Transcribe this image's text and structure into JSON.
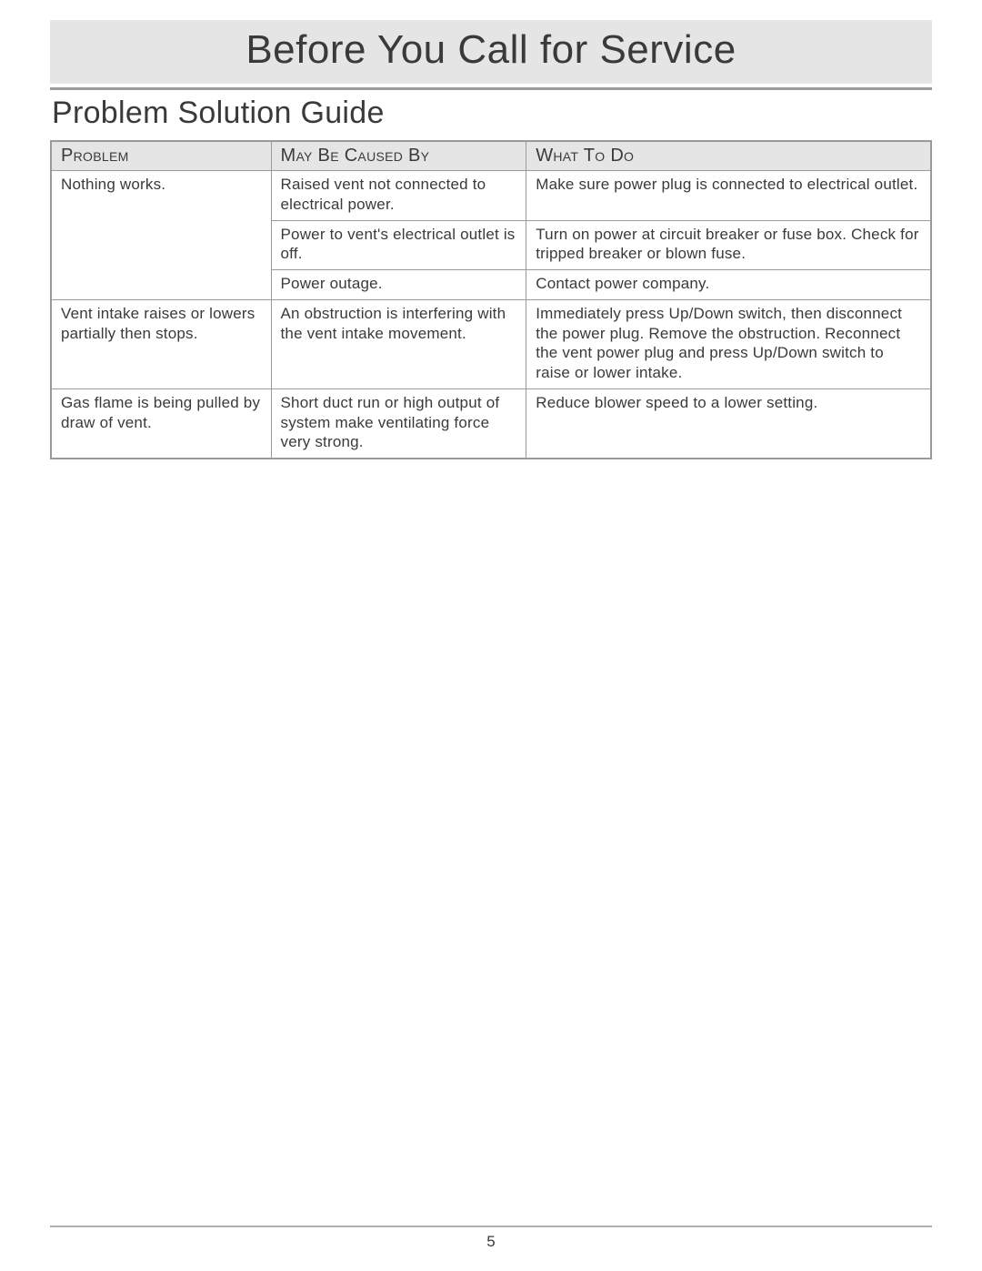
{
  "page": {
    "title": "Before You Call for Service",
    "subtitle": "Problem Solution Guide",
    "page_number": "5"
  },
  "table": {
    "headers": {
      "problem": "Problem",
      "cause": "May Be Caused By",
      "action": "What To Do"
    },
    "rows": [
      {
        "problem": "Nothing works.",
        "problem_rowspan": 3,
        "cause": "Raised vent not connected to electrical power.",
        "action": "Make sure power plug is connected to electrical outlet."
      },
      {
        "cause": "Power to vent's electrical outlet is off.",
        "action": "Turn on power at circuit breaker or fuse box. Check for tripped breaker or blown fuse."
      },
      {
        "cause": "Power outage.",
        "action": "Contact power company."
      },
      {
        "problem": "Vent intake raises or lowers partially then stops.",
        "cause": "An obstruction is interfering with the vent intake movement.",
        "action": "Immediately press Up/Down switch, then disconnect the power plug. Remove the obstruction. Reconnect the vent power plug and press Up/Down switch to raise or lower intake."
      },
      {
        "problem": "Gas flame is being pulled by draw of vent.",
        "cause": "Short duct run or high output of system make ventilating force very strong.",
        "action": "Reduce blower speed to a lower setting."
      }
    ]
  },
  "style": {
    "banner_bg": "#e5e5e5",
    "header_bg": "#e5e5e5",
    "rule_color": "#9a9a9a",
    "text_color": "#3a3a3a",
    "title_fontsize": 44,
    "subtitle_fontsize": 34,
    "th_fontsize": 20,
    "td_fontsize": 17,
    "col_widths_pct": [
      25,
      29,
      46
    ]
  }
}
